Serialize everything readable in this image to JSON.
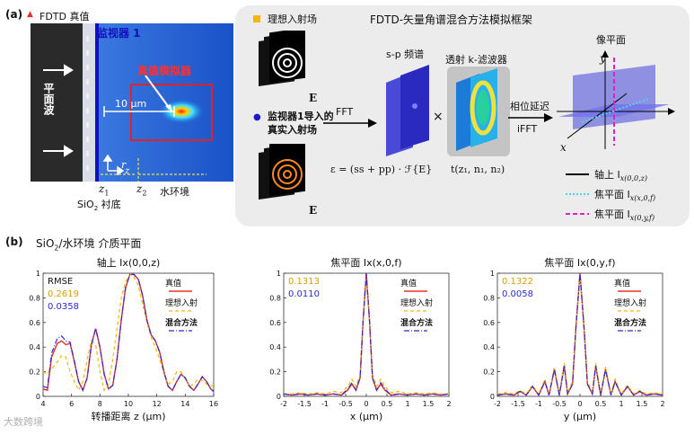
{
  "panel_a": {
    "label": "(a)",
    "ground_truth_label": "FDTD 真值",
    "monitor_label": "监视器 1",
    "simulator_label": "真值模拟器",
    "plane_wave_label": "平面波",
    "scale_label": "10 μm",
    "r_label": "r",
    "z_label": "z",
    "z1_label": "z",
    "z1_sub": "1",
    "z2_label": "z",
    "z2_sub": "2",
    "substrate_label": "SiO",
    "substrate_sub": "2",
    "substrate_suffix": " 衬底",
    "water_label": "水环境"
  },
  "framework": {
    "title": "FDTD-矢量角谱混合方法模拟框架",
    "ideal_incident": "理想入射场",
    "monitor_incident_line1": "监视器1导入的",
    "monitor_incident_line2": "真实入射场",
    "E_symbol": "E",
    "fft": "FFT",
    "sp_spectrum": "s-p 频谱",
    "times": "×",
    "k_filter": "透射 k-滤波器",
    "phase_delay": "相位延迟",
    "ifft": "iFFT",
    "image_plane": "像平面",
    "eq_left": "ε = (ss + pp) · ℱ{E}",
    "eq_right": "t(z₁, n₁, n₂)",
    "axis_x": "x",
    "axis_y": "y",
    "legend": [
      {
        "label": "轴上 I",
        "expr": "x(0,0,z)",
        "style": "solid",
        "color": "#000000"
      },
      {
        "label": "焦平面 I",
        "expr": "x(x,0,f)",
        "style": "dotted",
        "color": "#4fd3f0"
      },
      {
        "label": "焦平面 I",
        "expr": "x(0,y,f)",
        "style": "dashed",
        "color": "#e020c0"
      }
    ]
  },
  "panel_b": {
    "label": "(b)",
    "title_prefix": "SiO",
    "title_sub": "2",
    "title_suffix": "/水环境 介质平面"
  },
  "colors": {
    "truth": "#e8302a",
    "ideal": "#f5b800",
    "hybrid": "#2a2ad0",
    "frame_bg": "#ececec"
  },
  "chart_data": [
    {
      "type": "line",
      "title": "轴上 Ix(0,0,z)",
      "xlabel": "转播距离 z (μm)",
      "ylabel": "",
      "xlim": [
        4,
        16
      ],
      "ylim": [
        0,
        1
      ],
      "xticks": [
        "4",
        "6",
        "8",
        "10",
        "12",
        "14",
        "16"
      ],
      "yticks": [
        "0",
        "0.2",
        "0.4",
        "0.6",
        "0.8",
        "1"
      ],
      "rmse_label": "RMSE",
      "rmse_ideal": "0.2619",
      "rmse_hybrid": "0.0358",
      "legend": [
        "真值",
        "理想入射",
        "混合方法"
      ],
      "series": [
        {
          "name": "真值",
          "x": [
            4.0,
            4.3,
            4.6,
            5.0,
            5.3,
            5.6,
            5.9,
            6.2,
            6.5,
            6.8,
            7.1,
            7.4,
            7.7,
            8.0,
            8.3,
            8.6,
            8.9,
            9.2,
            9.5,
            9.8,
            10.1,
            10.4,
            10.7,
            11.0,
            11.3,
            11.6,
            11.9,
            12.2,
            12.5,
            12.8,
            13.1,
            13.4,
            13.7,
            14.0,
            14.3,
            14.6,
            14.9,
            15.2,
            15.5,
            15.8,
            16.0
          ],
          "y": [
            0.06,
            0.05,
            0.32,
            0.43,
            0.45,
            0.42,
            0.43,
            0.28,
            0.12,
            0.05,
            0.15,
            0.42,
            0.55,
            0.4,
            0.18,
            0.06,
            0.09,
            0.3,
            0.62,
            0.88,
            0.99,
            0.99,
            0.95,
            0.82,
            0.62,
            0.5,
            0.45,
            0.36,
            0.2,
            0.08,
            0.05,
            0.12,
            0.18,
            0.15,
            0.08,
            0.05,
            0.1,
            0.16,
            0.12,
            0.06,
            0.04
          ]
        },
        {
          "name": "理想入射",
          "x": [
            4.0,
            4.3,
            4.6,
            5.0,
            5.3,
            5.6,
            5.9,
            6.2,
            6.5,
            6.8,
            7.1,
            7.4,
            7.7,
            8.0,
            8.3,
            8.6,
            8.9,
            9.2,
            9.5,
            9.8,
            10.1,
            10.4,
            10.7,
            11.0,
            11.3,
            11.6,
            11.9,
            12.2,
            12.5,
            12.8,
            13.1,
            13.4,
            13.7,
            14.0,
            14.3,
            14.6,
            14.9,
            15.2,
            15.5,
            15.8,
            16.0
          ],
          "y": [
            0.2,
            0.18,
            0.22,
            0.28,
            0.33,
            0.32,
            0.2,
            0.12,
            0.05,
            0.12,
            0.3,
            0.45,
            0.42,
            0.2,
            0.05,
            0.1,
            0.3,
            0.55,
            0.8,
            0.93,
            0.99,
            0.97,
            0.9,
            0.75,
            0.6,
            0.48,
            0.4,
            0.3,
            0.18,
            0.1,
            0.12,
            0.2,
            0.2,
            0.14,
            0.08,
            0.1,
            0.14,
            0.13,
            0.1,
            0.09,
            0.08
          ]
        },
        {
          "name": "混合方法",
          "x": [
            4.0,
            4.3,
            4.6,
            5.0,
            5.3,
            5.6,
            5.9,
            6.2,
            6.5,
            6.8,
            7.1,
            7.4,
            7.7,
            8.0,
            8.3,
            8.6,
            8.9,
            9.2,
            9.5,
            9.8,
            10.1,
            10.4,
            10.7,
            11.0,
            11.3,
            11.6,
            11.9,
            12.2,
            12.5,
            12.8,
            13.1,
            13.4,
            13.7,
            14.0,
            14.3,
            14.6,
            14.9,
            15.2,
            15.5,
            15.8,
            16.0
          ],
          "y": [
            0.08,
            0.07,
            0.35,
            0.47,
            0.49,
            0.45,
            0.44,
            0.29,
            0.12,
            0.05,
            0.15,
            0.42,
            0.55,
            0.4,
            0.18,
            0.06,
            0.09,
            0.3,
            0.62,
            0.88,
            0.99,
            0.99,
            0.95,
            0.82,
            0.62,
            0.5,
            0.45,
            0.36,
            0.2,
            0.08,
            0.05,
            0.12,
            0.18,
            0.15,
            0.08,
            0.05,
            0.1,
            0.16,
            0.12,
            0.06,
            0.04
          ]
        }
      ]
    },
    {
      "type": "line",
      "title": "焦平面 Ix(x,0,f)",
      "xlabel": "x (μm)",
      "ylabel": "",
      "xlim": [
        -2,
        2
      ],
      "ylim": [
        0,
        1
      ],
      "xticks": [
        "-2",
        "-1.5",
        "-1",
        "-0.5",
        "0",
        "0.5",
        "1",
        "1.5",
        "2"
      ],
      "yticks": [
        "0",
        "0.2",
        "0.4",
        "0.6",
        "0.8",
        "1"
      ],
      "rmse_ideal": "0.1313",
      "rmse_hybrid": "0.0110",
      "legend": [
        "真值",
        "理想入射",
        "混合方法"
      ],
      "series": [
        {
          "name": "真值",
          "x": [
            -2.0,
            -1.8,
            -1.6,
            -1.4,
            -1.2,
            -1.0,
            -0.8,
            -0.6,
            -0.45,
            -0.35,
            -0.25,
            -0.15,
            -0.08,
            0.0,
            0.08,
            0.15,
            0.25,
            0.35,
            0.45,
            0.6,
            0.8,
            1.0,
            1.2,
            1.4,
            1.6,
            1.8,
            2.0
          ],
          "y": [
            0.02,
            0.01,
            0.02,
            0.01,
            0.02,
            0.01,
            0.02,
            0.01,
            0.05,
            0.1,
            0.05,
            0.15,
            0.6,
            1.0,
            0.6,
            0.15,
            0.05,
            0.1,
            0.05,
            0.01,
            0.02,
            0.01,
            0.02,
            0.01,
            0.02,
            0.01,
            0.02
          ]
        },
        {
          "name": "理想入射",
          "x": [
            -2.0,
            -1.8,
            -1.6,
            -1.4,
            -1.2,
            -1.0,
            -0.8,
            -0.6,
            -0.45,
            -0.35,
            -0.25,
            -0.15,
            -0.08,
            0.0,
            0.08,
            0.15,
            0.25,
            0.35,
            0.45,
            0.6,
            0.8,
            1.0,
            1.2,
            1.4,
            1.6,
            1.8,
            2.0
          ],
          "y": [
            0.02,
            0.02,
            0.03,
            0.02,
            0.03,
            0.02,
            0.04,
            0.03,
            0.08,
            0.14,
            0.08,
            0.18,
            0.62,
            0.96,
            0.62,
            0.18,
            0.08,
            0.14,
            0.08,
            0.03,
            0.04,
            0.02,
            0.03,
            0.02,
            0.03,
            0.02,
            0.02
          ]
        },
        {
          "name": "混合方法",
          "x": [
            -2.0,
            -1.8,
            -1.6,
            -1.4,
            -1.2,
            -1.0,
            -0.8,
            -0.6,
            -0.45,
            -0.35,
            -0.25,
            -0.15,
            -0.08,
            0.0,
            0.08,
            0.15,
            0.25,
            0.35,
            0.45,
            0.6,
            0.8,
            1.0,
            1.2,
            1.4,
            1.6,
            1.8,
            2.0
          ],
          "y": [
            0.02,
            0.01,
            0.02,
            0.01,
            0.02,
            0.01,
            0.02,
            0.01,
            0.06,
            0.11,
            0.05,
            0.15,
            0.6,
            1.0,
            0.6,
            0.15,
            0.05,
            0.11,
            0.06,
            0.01,
            0.02,
            0.01,
            0.02,
            0.01,
            0.02,
            0.01,
            0.02
          ]
        }
      ]
    },
    {
      "type": "line",
      "title": "焦平面 Ix(0,y,f)",
      "xlabel": "y (μm)",
      "ylabel": "",
      "xlim": [
        -2,
        2
      ],
      "ylim": [
        0,
        1
      ],
      "xticks": [
        "-2",
        "-1.5",
        "-1",
        "-0.5",
        "0",
        "0.5",
        "1",
        "1.5",
        "2"
      ],
      "yticks": [
        "0",
        "0.2",
        "0.4",
        "0.6",
        "0.8",
        "1"
      ],
      "rmse_ideal": "0.1322",
      "rmse_hybrid": "0.0058",
      "legend": [
        "真值",
        "理想入射",
        "混合方法"
      ],
      "series": [
        {
          "name": "真值",
          "x": [
            -2.0,
            -1.8,
            -1.6,
            -1.45,
            -1.3,
            -1.15,
            -1.0,
            -0.85,
            -0.75,
            -0.62,
            -0.5,
            -0.38,
            -0.3,
            -0.18,
            -0.1,
            0.0,
            0.1,
            0.18,
            0.3,
            0.38,
            0.5,
            0.62,
            0.75,
            0.85,
            1.0,
            1.15,
            1.3,
            1.45,
            1.6,
            1.8,
            2.0
          ],
          "y": [
            0.01,
            0.02,
            0.01,
            0.04,
            0.01,
            0.08,
            0.01,
            0.12,
            0.01,
            0.22,
            0.01,
            0.25,
            0.02,
            0.1,
            0.55,
            1.0,
            0.55,
            0.1,
            0.02,
            0.25,
            0.01,
            0.22,
            0.01,
            0.12,
            0.01,
            0.08,
            0.01,
            0.04,
            0.01,
            0.02,
            0.01
          ]
        },
        {
          "name": "理想入射",
          "x": [
            -2.0,
            -1.8,
            -1.6,
            -1.45,
            -1.3,
            -1.15,
            -1.0,
            -0.85,
            -0.75,
            -0.62,
            -0.5,
            -0.38,
            -0.3,
            -0.18,
            -0.1,
            0.0,
            0.1,
            0.18,
            0.3,
            0.38,
            0.5,
            0.62,
            0.75,
            0.85,
            1.0,
            1.15,
            1.3,
            1.45,
            1.6,
            1.8,
            2.0
          ],
          "y": [
            0.02,
            0.03,
            0.02,
            0.05,
            0.02,
            0.09,
            0.02,
            0.14,
            0.02,
            0.24,
            0.02,
            0.27,
            0.03,
            0.12,
            0.57,
            0.98,
            0.57,
            0.12,
            0.03,
            0.27,
            0.02,
            0.24,
            0.02,
            0.14,
            0.02,
            0.09,
            0.02,
            0.05,
            0.02,
            0.03,
            0.02
          ]
        },
        {
          "name": "混合方法",
          "x": [
            -2.0,
            -1.8,
            -1.6,
            -1.45,
            -1.3,
            -1.15,
            -1.0,
            -0.85,
            -0.75,
            -0.62,
            -0.5,
            -0.38,
            -0.3,
            -0.18,
            -0.1,
            0.0,
            0.1,
            0.18,
            0.3,
            0.38,
            0.5,
            0.62,
            0.75,
            0.85,
            1.0,
            1.15,
            1.3,
            1.45,
            1.6,
            1.8,
            2.0
          ],
          "y": [
            0.01,
            0.02,
            0.01,
            0.04,
            0.01,
            0.08,
            0.01,
            0.12,
            0.01,
            0.22,
            0.01,
            0.25,
            0.02,
            0.1,
            0.55,
            1.0,
            0.55,
            0.1,
            0.02,
            0.25,
            0.01,
            0.22,
            0.01,
            0.12,
            0.01,
            0.08,
            0.01,
            0.04,
            0.01,
            0.02,
            0.01
          ]
        }
      ]
    }
  ],
  "watermark": "大数跨境"
}
